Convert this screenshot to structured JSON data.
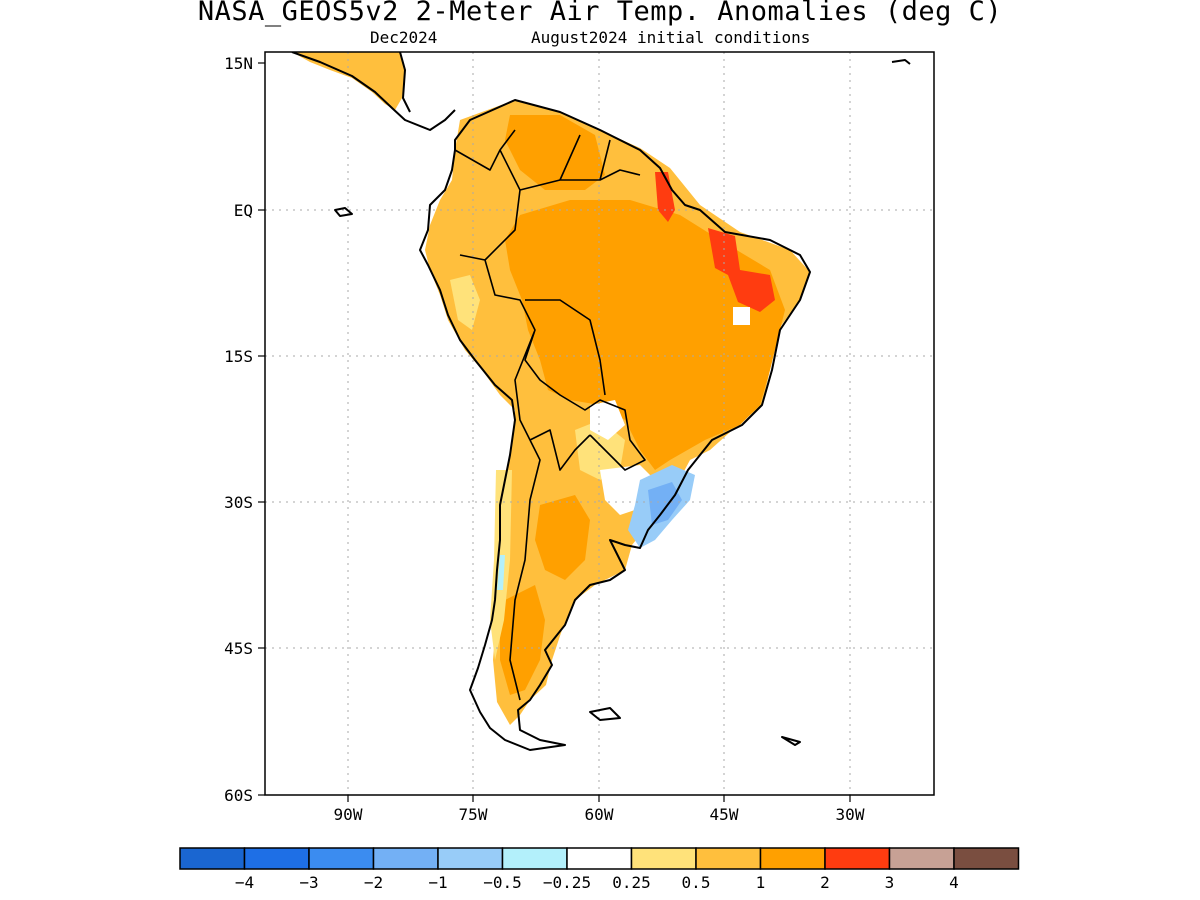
{
  "header": {
    "title": "NASA_GEOS5v2 2-Meter Air Temp. Anomalies (deg C)",
    "subtitle_left": "Dec2024",
    "subtitle_right": "August2024 initial conditions"
  },
  "map": {
    "lat_labels": [
      "15N",
      "EQ",
      "15S",
      "30S",
      "45S",
      "60S"
    ],
    "lon_labels": [
      "90W",
      "75W",
      "60W",
      "45W",
      "30W"
    ]
  },
  "colorbar": {
    "labels": [
      "−4",
      "−3",
      "−2",
      "−1",
      "−0.5",
      "−0.25",
      "0.25",
      "0.5",
      "1",
      "2",
      "3",
      "4"
    ],
    "colors": [
      "#1a66d1",
      "#1e6fe6",
      "#3b8cf0",
      "#73b0f5",
      "#98ccf8",
      "#b3f0fb",
      "#ffffff",
      "#ffe27a",
      "#ffbf3d",
      "#ffa000",
      "#ff3c10",
      "#c7a195",
      "#7a4e40"
    ]
  }
}
